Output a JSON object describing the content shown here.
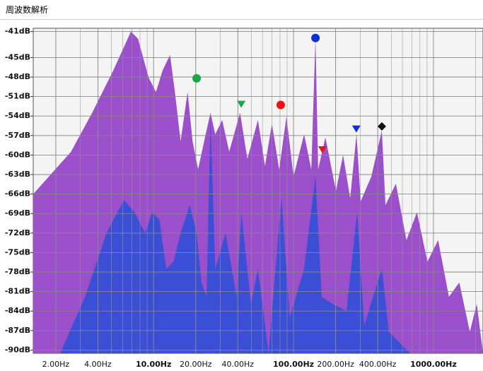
{
  "window_title": "周波数解析",
  "chart_data": {
    "type": "area",
    "xlim": [
      1.38,
      2260
    ],
    "ylim": [
      -90.5,
      -40.5
    ],
    "log_x": true,
    "grid": true,
    "xticks": [
      {
        "value": 2,
        "label": "2.00Hz"
      },
      {
        "value": 4,
        "label": "4.00Hz"
      },
      {
        "value": 10,
        "label": "10.00Hz"
      },
      {
        "value": 20,
        "label": "20.00Hz"
      },
      {
        "value": 40,
        "label": "40.00Hz"
      },
      {
        "value": 100,
        "label": "100.00Hz"
      },
      {
        "value": 200,
        "label": "200.00Hz"
      },
      {
        "value": 400,
        "label": "400.00Hz"
      },
      {
        "value": 1000,
        "label": "1000.00Hz"
      }
    ],
    "x_minor_grid": [
      2,
      3,
      4,
      5,
      6,
      7,
      8,
      9,
      20,
      30,
      40,
      50,
      60,
      70,
      80,
      90,
      200,
      300,
      400,
      500,
      600,
      700,
      800,
      900,
      2000
    ],
    "yticks": [
      {
        "value": -41,
        "label": "-41dB"
      },
      {
        "value": -45,
        "label": "-45dB"
      },
      {
        "value": -48,
        "label": "-48dB"
      },
      {
        "value": -51,
        "label": "-51dB"
      },
      {
        "value": -54,
        "label": "-54dB"
      },
      {
        "value": -57,
        "label": "-57dB"
      },
      {
        "value": -60,
        "label": "-60dB"
      },
      {
        "value": -63,
        "label": "-63dB"
      },
      {
        "value": -66,
        "label": "-66dB"
      },
      {
        "value": -69,
        "label": "-69dB"
      },
      {
        "value": -72,
        "label": "-72dB"
      },
      {
        "value": -75,
        "label": "-75dB"
      },
      {
        "value": -78,
        "label": "-78dB"
      },
      {
        "value": -81,
        "label": "-81dB"
      },
      {
        "value": -84,
        "label": "-84dB"
      },
      {
        "value": -87,
        "label": "-87dB"
      },
      {
        "value": -90,
        "label": "-90dB"
      }
    ],
    "series": [
      {
        "color": "#9b4fcb",
        "x": [
          1.38,
          2.57,
          3.64,
          5.15,
          6.89,
          7.73,
          9.22,
          10.4,
          11.6,
          13.1,
          14.2,
          15.6,
          17.5,
          19.0,
          20.8,
          23.3,
          25.5,
          27.6,
          30.9,
          34.7,
          41.5,
          46.8,
          55.7,
          62.5,
          70.1,
          79.0,
          89.0,
          100,
          119,
          134,
          143.5,
          150,
          169,
          201,
          226,
          254,
          282,
          302,
          360,
          428,
          454,
          539,
          641,
          762,
          906,
          1080,
          1290,
          1530,
          1820,
          2040,
          2260
        ],
        "values": [
          -66,
          -59.5,
          -53.5,
          -47,
          -41,
          -42.1,
          -48.1,
          -50.3,
          -47,
          -44.6,
          -50.3,
          -57.9,
          -50.3,
          -57.9,
          -62.2,
          -57.3,
          -53.5,
          -56.8,
          -54.6,
          -59.5,
          -53.5,
          -60.6,
          -54.6,
          -61.7,
          -55.2,
          -62.2,
          -54.1,
          -63.3,
          -56.8,
          -62.2,
          -42,
          -62.2,
          -57.3,
          -65.5,
          -60,
          -66.6,
          -56.8,
          -67.1,
          -63.3,
          -56.2,
          -67.7,
          -64.4,
          -73.1,
          -68.8,
          -76.4,
          -73.1,
          -81.8,
          -79.6,
          -87.2,
          -82.9,
          -90.5
        ]
      },
      {
        "color": "#3a4fd6",
        "x": [
          2.15,
          3.24,
          4.61,
          6.14,
          7.32,
          8.7,
          9.77,
          11,
          12.3,
          13.9,
          15.6,
          18.1,
          20.3,
          22,
          23.9,
          25.5,
          27.6,
          32.7,
          39.2,
          42.4,
          49.6,
          55.7,
          66.3,
          82,
          94,
          119,
          143.5,
          159,
          190,
          239,
          285,
          320,
          428,
          480,
          680
        ],
        "values": [
          -90.5,
          -81.8,
          -72,
          -66.9,
          -68.8,
          -72,
          -68.8,
          -69.9,
          -77.5,
          -76.4,
          -72,
          -67.7,
          -72,
          -79.6,
          -81.8,
          -54.6,
          -77.5,
          -72,
          -81.8,
          -68.8,
          -82.9,
          -77.5,
          -90.5,
          -66.6,
          -85,
          -77.5,
          -63.3,
          -81.8,
          -82.9,
          -84,
          -68.8,
          -86.2,
          -77.5,
          -87.2,
          -90.5
        ]
      }
    ],
    "markers": [
      {
        "shape": "circle",
        "color": "#1aa64a",
        "x": 20.3,
        "y": -48.2
      },
      {
        "shape": "triangle",
        "color": "#1aa64a",
        "x": 42.3,
        "y": -52.2
      },
      {
        "shape": "circle",
        "color": "#ee1111",
        "x": 81,
        "y": -52.3
      },
      {
        "shape": "circle",
        "color": "#1030d0",
        "x": 143.5,
        "y": -42
      },
      {
        "shape": "triangle",
        "color": "#ee1111",
        "x": 161,
        "y": -59.2
      },
      {
        "shape": "triangle",
        "color": "#1030d0",
        "x": 281,
        "y": -56
      },
      {
        "shape": "diamond",
        "color": "#111111",
        "x": 428,
        "y": -55.6
      }
    ]
  }
}
